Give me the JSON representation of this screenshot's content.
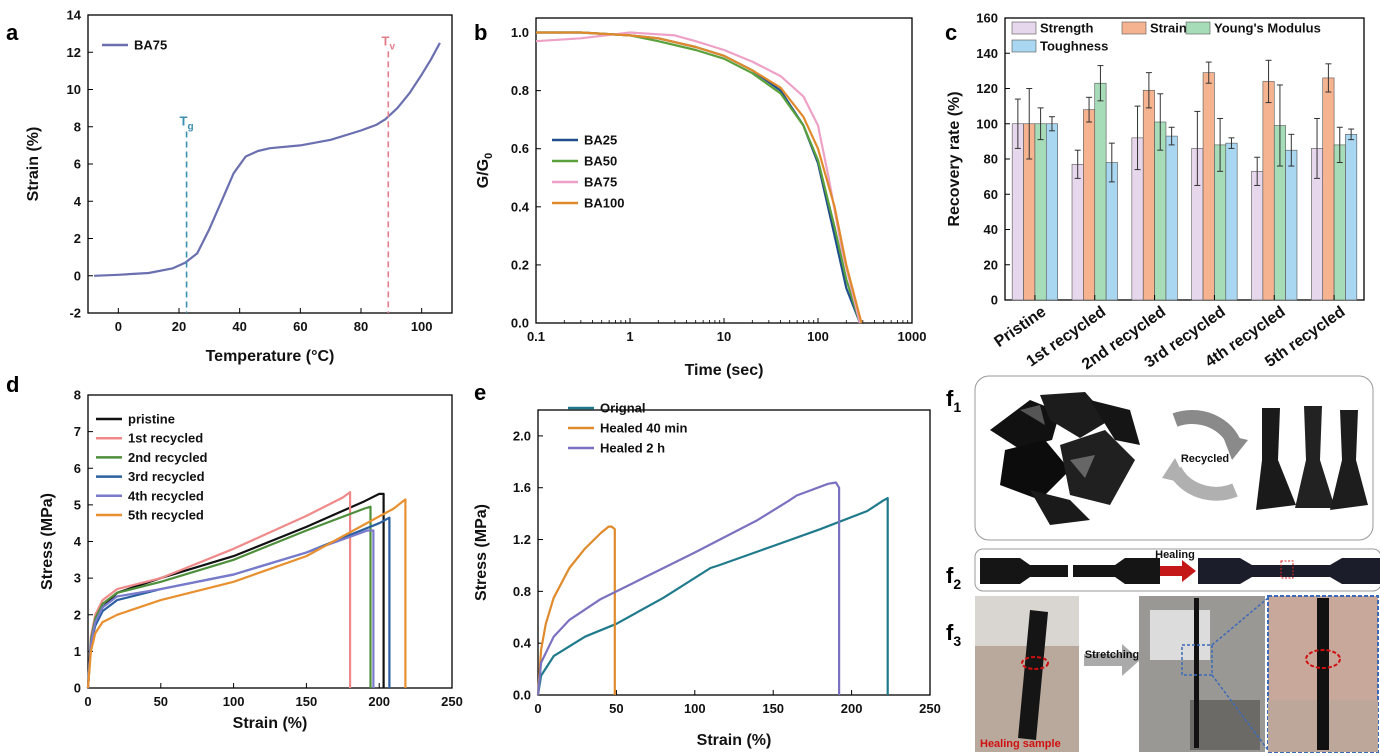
{
  "colors": {
    "a_line": "#6a6fb0",
    "tg": "#3b8fb0",
    "tv": "#e27d8a",
    "BA25": "#1f4e8c",
    "BA50": "#5aa13c",
    "BA75": "#eea1c6",
    "BA100": "#e08a2c",
    "pristine": "#111111",
    "r1": "#f08a8a",
    "r2": "#4f8f3c",
    "r3": "#2b5fa0",
    "r4": "#7a7acc",
    "r5": "#e8902f",
    "orig": "#1f7a8c",
    "h40": "#e08a2c",
    "h2": "#7a72c0",
    "strength": "#e7d7ec",
    "strain": "#f6b38f",
    "modulus": "#a6dcb8",
    "toughness": "#a9d6f0"
  },
  "panels": {
    "a": "a",
    "b": "b",
    "c": "c",
    "d": "d",
    "e": "e",
    "f1": "f",
    "f1_sub": "1",
    "f2": "f",
    "f2_sub": "2",
    "f3": "f",
    "f3_sub": "3"
  },
  "chart_data": [
    {
      "id": "a",
      "type": "line",
      "xlabel": "Temperature (°C)",
      "ylabel": "Strain (%)",
      "xlim": [
        -10,
        110
      ],
      "ylim": [
        -2,
        14
      ],
      "xticks": [
        0,
        20,
        40,
        60,
        80,
        100
      ],
      "yticks": [
        -2,
        0,
        2,
        4,
        6,
        8,
        10,
        12,
        14
      ],
      "legend": "top-left",
      "series": [
        {
          "name": "BA75",
          "color": "a_line",
          "x": [
            -8,
            0,
            10,
            18,
            22,
            26,
            30,
            34,
            38,
            42,
            46,
            50,
            60,
            70,
            80,
            85,
            88,
            92,
            96,
            100,
            103,
            106
          ],
          "y": [
            0.0,
            0.05,
            0.15,
            0.4,
            0.7,
            1.2,
            2.5,
            4.0,
            5.5,
            6.4,
            6.7,
            6.85,
            7.0,
            7.3,
            7.8,
            8.1,
            8.4,
            9.0,
            9.8,
            10.8,
            11.6,
            12.5
          ]
        }
      ],
      "annotations": [
        {
          "text": "T",
          "sub": "g",
          "x": 22.5,
          "color": "tg"
        },
        {
          "text": "T",
          "sub": "v",
          "x": 89,
          "color": "tv"
        }
      ]
    },
    {
      "id": "b",
      "type": "line",
      "xscale": "log",
      "xlabel": "Time (sec)",
      "ylabel": "G/G",
      "ylabel_sub": "0",
      "xlim": [
        0.1,
        1000
      ],
      "ylim": [
        0,
        1.05
      ],
      "xticks": [
        0.1,
        1,
        10,
        100,
        1000
      ],
      "xticklabels": [
        "0.1",
        "1",
        "10",
        "100",
        "1000"
      ],
      "yticks": [
        0.0,
        0.2,
        0.4,
        0.6,
        0.8,
        1.0
      ],
      "yticklabels": [
        "0.0",
        "0.2",
        "0.4",
        "0.6",
        "0.8",
        "1.0"
      ],
      "legend": "center-left",
      "series": [
        {
          "name": "BA25",
          "color": "BA25",
          "x": [
            0.1,
            0.3,
            1,
            2,
            5,
            10,
            20,
            40,
            70,
            100,
            150,
            200,
            280
          ],
          "y": [
            1.0,
            1.0,
            0.99,
            0.98,
            0.95,
            0.92,
            0.87,
            0.8,
            0.68,
            0.55,
            0.3,
            0.12,
            0.0
          ]
        },
        {
          "name": "BA50",
          "color": "BA50",
          "x": [
            0.1,
            0.3,
            1,
            2,
            5,
            10,
            20,
            40,
            70,
            100,
            150,
            200,
            280
          ],
          "y": [
            1.0,
            1.0,
            0.99,
            0.97,
            0.94,
            0.91,
            0.86,
            0.79,
            0.68,
            0.56,
            0.33,
            0.15,
            0.0
          ]
        },
        {
          "name": "BA75",
          "color": "BA75",
          "x": [
            0.1,
            0.3,
            1,
            3,
            5,
            10,
            20,
            40,
            70,
            100,
            130,
            180,
            280
          ],
          "y": [
            0.97,
            0.98,
            1.0,
            0.99,
            0.97,
            0.94,
            0.9,
            0.85,
            0.78,
            0.68,
            0.5,
            0.25,
            0.0
          ]
        },
        {
          "name": "BA100",
          "color": "BA100",
          "x": [
            0.1,
            0.3,
            1,
            2,
            5,
            10,
            20,
            40,
            70,
            100,
            150,
            200,
            290
          ],
          "y": [
            1.0,
            1.0,
            0.99,
            0.98,
            0.95,
            0.92,
            0.87,
            0.81,
            0.71,
            0.6,
            0.4,
            0.2,
            0.0
          ]
        }
      ]
    },
    {
      "id": "c",
      "type": "bar",
      "ylabel": "Recovery rate (%)",
      "ylim": [
        0,
        160
      ],
      "yticks": [
        0,
        20,
        40,
        60,
        80,
        100,
        120,
        140,
        160
      ],
      "categories": [
        "Pristine",
        "1st recycled",
        "2nd recycled",
        "3rd recycled",
        "4th recycled",
        "5th recycled"
      ],
      "legend": "top",
      "series": [
        {
          "name": "Strength",
          "color": "strength",
          "values": [
            100,
            77,
            92,
            86,
            73,
            86
          ],
          "errors": [
            14,
            8,
            18,
            21,
            8,
            17
          ]
        },
        {
          "name": "Strain",
          "color": "strain",
          "values": [
            100,
            108,
            119,
            129,
            124,
            126
          ],
          "errors": [
            20,
            7,
            10,
            6,
            12,
            8
          ]
        },
        {
          "name": "Young's Modulus",
          "color": "modulus",
          "values": [
            100,
            123,
            101,
            88,
            99,
            88
          ],
          "errors": [
            9,
            10,
            16,
            15,
            23,
            10
          ]
        },
        {
          "name": "Toughness",
          "color": "toughness",
          "values": [
            100,
            78,
            93,
            89,
            85,
            94
          ],
          "errors": [
            4,
            11,
            5,
            3,
            9,
            3
          ]
        }
      ]
    },
    {
      "id": "d",
      "type": "line",
      "xlabel": "Strain (%)",
      "ylabel": "Stress (MPa)",
      "xlim": [
        0,
        250
      ],
      "ylim": [
        0,
        8
      ],
      "xticks": [
        0,
        50,
        100,
        150,
        200,
        250
      ],
      "yticks": [
        0,
        1,
        2,
        3,
        4,
        5,
        6,
        7,
        8
      ],
      "legend": "top-left",
      "series": [
        {
          "name": "pristine",
          "color": "pristine",
          "x": [
            0,
            2,
            5,
            10,
            20,
            50,
            100,
            150,
            190,
            200,
            203,
            203
          ],
          "y": [
            0,
            1.2,
            1.8,
            2.2,
            2.6,
            3.0,
            3.6,
            4.4,
            5.1,
            5.3,
            5.3,
            0
          ]
        },
        {
          "name": "1st recycled",
          "color": "r1",
          "x": [
            0,
            2,
            5,
            10,
            20,
            50,
            100,
            150,
            175,
            180,
            180
          ],
          "y": [
            0,
            1.4,
            2.0,
            2.4,
            2.7,
            3.0,
            3.8,
            4.7,
            5.2,
            5.35,
            0
          ]
        },
        {
          "name": "2nd recycled",
          "color": "r2",
          "x": [
            0,
            2,
            5,
            10,
            20,
            50,
            100,
            150,
            190,
            194,
            194
          ],
          "y": [
            0,
            1.3,
            1.9,
            2.3,
            2.6,
            2.9,
            3.5,
            4.3,
            4.9,
            4.95,
            0
          ]
        },
        {
          "name": "3rd recycled",
          "color": "r3",
          "x": [
            0,
            2,
            5,
            10,
            20,
            50,
            100,
            150,
            200,
            207,
            207
          ],
          "y": [
            0,
            1.2,
            1.7,
            2.1,
            2.4,
            2.7,
            3.1,
            3.7,
            4.5,
            4.65,
            0
          ]
        },
        {
          "name": "4th recycled",
          "color": "r4",
          "x": [
            0,
            2,
            5,
            10,
            20,
            50,
            100,
            150,
            192,
            196,
            196
          ],
          "y": [
            0,
            1.2,
            1.8,
            2.2,
            2.5,
            2.7,
            3.1,
            3.7,
            4.3,
            4.3,
            0
          ]
        },
        {
          "name": "5th recycled",
          "color": "r5",
          "x": [
            0,
            2,
            5,
            10,
            20,
            50,
            100,
            150,
            210,
            218,
            218
          ],
          "y": [
            0,
            1.0,
            1.5,
            1.8,
            2.0,
            2.4,
            2.9,
            3.6,
            4.9,
            5.15,
            0
          ]
        }
      ]
    },
    {
      "id": "e",
      "type": "line",
      "xlabel": "Strain (%)",
      "ylabel": "Stress (MPa)",
      "xlim": [
        0,
        250
      ],
      "ylim": [
        0,
        2.2
      ],
      "xticks": [
        0,
        50,
        100,
        150,
        200,
        250
      ],
      "yticks": [
        0.0,
        0.4,
        0.8,
        1.2,
        1.6,
        2.0
      ],
      "yticklabels": [
        "0.0",
        "0.4",
        "0.8",
        "1.2",
        "1.6",
        "2.0"
      ],
      "legend": "top-left",
      "series": [
        {
          "name": "Orignal",
          "color": "orig",
          "x": [
            0,
            2,
            10,
            30,
            50,
            80,
            110,
            115,
            150,
            180,
            210,
            220,
            223,
            223
          ],
          "y": [
            0,
            0.15,
            0.3,
            0.45,
            0.55,
            0.75,
            0.98,
            1.0,
            1.15,
            1.28,
            1.42,
            1.5,
            1.52,
            0
          ]
        },
        {
          "name": "Healed 40 min",
          "color": "h40",
          "x": [
            0,
            2,
            5,
            10,
            20,
            30,
            40,
            45,
            47,
            49,
            49
          ],
          "y": [
            0,
            0.35,
            0.55,
            0.75,
            0.98,
            1.13,
            1.25,
            1.3,
            1.3,
            1.28,
            0
          ]
        },
        {
          "name": "Healed 2 h",
          "color": "h2",
          "x": [
            0,
            2,
            10,
            20,
            40,
            60,
            100,
            140,
            160,
            165,
            185,
            190,
            192,
            192
          ],
          "y": [
            0,
            0.25,
            0.45,
            0.58,
            0.74,
            0.86,
            1.1,
            1.35,
            1.5,
            1.54,
            1.63,
            1.64,
            1.6,
            0
          ]
        }
      ]
    }
  ],
  "photos": {
    "f1_recycled_label": "Recycled",
    "f2_healing_label": "Healing",
    "f3_stretching_label": "Stretching",
    "f3_healing_sample_label": "Healing sample"
  }
}
